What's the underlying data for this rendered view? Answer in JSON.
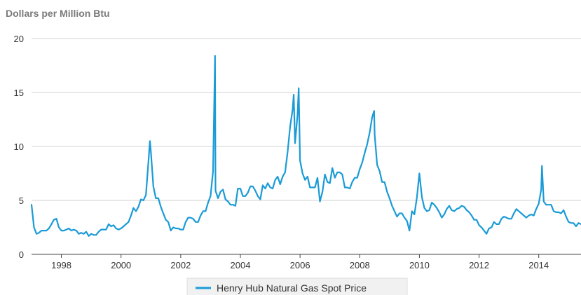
{
  "chart_data": {
    "type": "line",
    "title": "",
    "ylabel": "Dollars per Million Btu",
    "xlabel": "",
    "ylim": [
      0,
      20
    ],
    "xlim": [
      "1997-01",
      "2015-06"
    ],
    "y_ticks": [
      "0",
      "5",
      "10",
      "15",
      "20"
    ],
    "x_ticks": [
      "1998",
      "2000",
      "2002",
      "2004",
      "2006",
      "2008",
      "2010",
      "2012",
      "2014"
    ],
    "grid": "horizontal",
    "legend_position": "bottom-center",
    "series": [
      {
        "name": "Henry Hub Natural Gas Spot Price",
        "color": "#1a9bd7",
        "points": [
          [
            "1997-01",
            4.6
          ],
          [
            "1997-02",
            2.5
          ],
          [
            "1997-03",
            1.9
          ],
          [
            "1997-04",
            2.0
          ],
          [
            "1997-05",
            2.2
          ],
          [
            "1997-06",
            2.2
          ],
          [
            "1997-07",
            2.2
          ],
          [
            "1997-08",
            2.4
          ],
          [
            "1997-09",
            2.8
          ],
          [
            "1997-10",
            3.2
          ],
          [
            "1997-11",
            3.3
          ],
          [
            "1997-12",
            2.5
          ],
          [
            "1998-01",
            2.2
          ],
          [
            "1998-02",
            2.2
          ],
          [
            "1998-03",
            2.3
          ],
          [
            "1998-04",
            2.4
          ],
          [
            "1998-05",
            2.2
          ],
          [
            "1998-06",
            2.3
          ],
          [
            "1998-07",
            2.2
          ],
          [
            "1998-08",
            1.9
          ],
          [
            "1998-09",
            2.0
          ],
          [
            "1998-10",
            1.9
          ],
          [
            "1998-11",
            2.1
          ],
          [
            "1998-12",
            1.7
          ],
          [
            "1999-01",
            1.9
          ],
          [
            "1999-02",
            1.8
          ],
          [
            "1999-03",
            1.8
          ],
          [
            "1999-04",
            2.1
          ],
          [
            "1999-05",
            2.3
          ],
          [
            "1999-06",
            2.3
          ],
          [
            "1999-07",
            2.3
          ],
          [
            "1999-08",
            2.8
          ],
          [
            "1999-09",
            2.6
          ],
          [
            "1999-10",
            2.7
          ],
          [
            "1999-11",
            2.4
          ],
          [
            "1999-12",
            2.3
          ],
          [
            "2000-01",
            2.4
          ],
          [
            "2000-02",
            2.6
          ],
          [
            "2000-03",
            2.8
          ],
          [
            "2000-04",
            3.0
          ],
          [
            "2000-05",
            3.6
          ],
          [
            "2000-06",
            4.3
          ],
          [
            "2000-07",
            4.0
          ],
          [
            "2000-08",
            4.4
          ],
          [
            "2000-09",
            5.1
          ],
          [
            "2000-10",
            5.0
          ],
          [
            "2000-11",
            5.5
          ],
          [
            "2000-12",
            8.5
          ],
          [
            "2000-12-20",
            10.5
          ],
          [
            "2001-01",
            9.5
          ],
          [
            "2001-02",
            6.3
          ],
          [
            "2001-03",
            5.2
          ],
          [
            "2001-04",
            5.2
          ],
          [
            "2001-05",
            4.4
          ],
          [
            "2001-06",
            3.8
          ],
          [
            "2001-07",
            3.2
          ],
          [
            "2001-08",
            3.0
          ],
          [
            "2001-09",
            2.2
          ],
          [
            "2001-10",
            2.5
          ],
          [
            "2001-11",
            2.4
          ],
          [
            "2001-12",
            2.4
          ],
          [
            "2002-01",
            2.3
          ],
          [
            "2002-02",
            2.3
          ],
          [
            "2002-03",
            3.0
          ],
          [
            "2002-04",
            3.4
          ],
          [
            "2002-05",
            3.4
          ],
          [
            "2002-06",
            3.3
          ],
          [
            "2002-07",
            3.0
          ],
          [
            "2002-08",
            3.0
          ],
          [
            "2002-09",
            3.6
          ],
          [
            "2002-10",
            4.0
          ],
          [
            "2002-11",
            4.0
          ],
          [
            "2002-12",
            4.8
          ],
          [
            "2003-01",
            5.4
          ],
          [
            "2003-02",
            7.7
          ],
          [
            "2003-02-25",
            18.4
          ],
          [
            "2003-03",
            5.9
          ],
          [
            "2003-04",
            5.2
          ],
          [
            "2003-05",
            5.8
          ],
          [
            "2003-06",
            6.0
          ],
          [
            "2003-07",
            5.1
          ],
          [
            "2003-08",
            4.9
          ],
          [
            "2003-09",
            4.6
          ],
          [
            "2003-10",
            4.6
          ],
          [
            "2003-11",
            4.5
          ],
          [
            "2003-12",
            6.1
          ],
          [
            "2004-01",
            6.1
          ],
          [
            "2004-02",
            5.4
          ],
          [
            "2004-03",
            5.4
          ],
          [
            "2004-04",
            5.7
          ],
          [
            "2004-05",
            6.3
          ],
          [
            "2004-06",
            6.3
          ],
          [
            "2004-07",
            5.9
          ],
          [
            "2004-08",
            5.4
          ],
          [
            "2004-09",
            5.1
          ],
          [
            "2004-10",
            6.4
          ],
          [
            "2004-11",
            6.1
          ],
          [
            "2004-12",
            6.6
          ],
          [
            "2005-01",
            6.2
          ],
          [
            "2005-02",
            6.1
          ],
          [
            "2005-03",
            6.9
          ],
          [
            "2005-04",
            7.2
          ],
          [
            "2005-05",
            6.5
          ],
          [
            "2005-06",
            7.2
          ],
          [
            "2005-07",
            7.6
          ],
          [
            "2005-08",
            9.5
          ],
          [
            "2005-09",
            11.8
          ],
          [
            "2005-10",
            13.4
          ],
          [
            "2005-10-15",
            14.8
          ],
          [
            "2005-11",
            10.3
          ],
          [
            "2005-12",
            13.0
          ],
          [
            "2005-12-15",
            15.4
          ],
          [
            "2006-01",
            8.7
          ],
          [
            "2006-02",
            7.5
          ],
          [
            "2006-03",
            6.9
          ],
          [
            "2006-04",
            7.2
          ],
          [
            "2006-05",
            6.2
          ],
          [
            "2006-06",
            6.2
          ],
          [
            "2006-07",
            6.2
          ],
          [
            "2006-08",
            7.1
          ],
          [
            "2006-09",
            4.9
          ],
          [
            "2006-10",
            5.8
          ],
          [
            "2006-11",
            7.4
          ],
          [
            "2006-12",
            6.7
          ],
          [
            "2007-01",
            6.6
          ],
          [
            "2007-02",
            8.0
          ],
          [
            "2007-03",
            7.1
          ],
          [
            "2007-04",
            7.6
          ],
          [
            "2007-05",
            7.6
          ],
          [
            "2007-06",
            7.4
          ],
          [
            "2007-07",
            6.2
          ],
          [
            "2007-08",
            6.2
          ],
          [
            "2007-09",
            6.1
          ],
          [
            "2007-10",
            6.7
          ],
          [
            "2007-11",
            7.1
          ],
          [
            "2007-12",
            7.1
          ],
          [
            "2008-01",
            7.9
          ],
          [
            "2008-02",
            8.5
          ],
          [
            "2008-03",
            9.4
          ],
          [
            "2008-04",
            10.2
          ],
          [
            "2008-05",
            11.3
          ],
          [
            "2008-06",
            12.7
          ],
          [
            "2008-06-25",
            13.3
          ],
          [
            "2008-07",
            11.1
          ],
          [
            "2008-08",
            8.3
          ],
          [
            "2008-09",
            7.7
          ],
          [
            "2008-10",
            6.7
          ],
          [
            "2008-11",
            6.7
          ],
          [
            "2008-12",
            5.8
          ],
          [
            "2009-01",
            5.2
          ],
          [
            "2009-02",
            4.5
          ],
          [
            "2009-03",
            4.0
          ],
          [
            "2009-04",
            3.5
          ],
          [
            "2009-05",
            3.8
          ],
          [
            "2009-06",
            3.8
          ],
          [
            "2009-07",
            3.4
          ],
          [
            "2009-08",
            3.1
          ],
          [
            "2009-09",
            2.2
          ],
          [
            "2009-10",
            4.0
          ],
          [
            "2009-11",
            3.7
          ],
          [
            "2009-12",
            5.3
          ],
          [
            "2010-01",
            7.5
          ],
          [
            "2010-02",
            5.3
          ],
          [
            "2010-03",
            4.3
          ],
          [
            "2010-04",
            4.0
          ],
          [
            "2010-05",
            4.1
          ],
          [
            "2010-06",
            4.8
          ],
          [
            "2010-07",
            4.6
          ],
          [
            "2010-08",
            4.3
          ],
          [
            "2010-09",
            3.9
          ],
          [
            "2010-10",
            3.4
          ],
          [
            "2010-11",
            3.7
          ],
          [
            "2010-12",
            4.2
          ],
          [
            "2011-01",
            4.5
          ],
          [
            "2011-02",
            4.1
          ],
          [
            "2011-03",
            4.0
          ],
          [
            "2011-04",
            4.2
          ],
          [
            "2011-05",
            4.3
          ],
          [
            "2011-06",
            4.5
          ],
          [
            "2011-07",
            4.4
          ],
          [
            "2011-08",
            4.1
          ],
          [
            "2011-09",
            3.9
          ],
          [
            "2011-10",
            3.6
          ],
          [
            "2011-11",
            3.2
          ],
          [
            "2011-12",
            3.2
          ],
          [
            "2012-01",
            2.7
          ],
          [
            "2012-02",
            2.5
          ],
          [
            "2012-03",
            2.2
          ],
          [
            "2012-04",
            1.9
          ],
          [
            "2012-05",
            2.4
          ],
          [
            "2012-06",
            2.5
          ],
          [
            "2012-07",
            3.0
          ],
          [
            "2012-08",
            2.8
          ],
          [
            "2012-09",
            2.8
          ],
          [
            "2012-10",
            3.3
          ],
          [
            "2012-11",
            3.5
          ],
          [
            "2012-12",
            3.4
          ],
          [
            "2013-01",
            3.3
          ],
          [
            "2013-02",
            3.3
          ],
          [
            "2013-03",
            3.8
          ],
          [
            "2013-04",
            4.2
          ],
          [
            "2013-05",
            4.0
          ],
          [
            "2013-06",
            3.8
          ],
          [
            "2013-07",
            3.6
          ],
          [
            "2013-08",
            3.4
          ],
          [
            "2013-09",
            3.6
          ],
          [
            "2013-10",
            3.7
          ],
          [
            "2013-11",
            3.6
          ],
          [
            "2013-12",
            4.2
          ],
          [
            "2014-01",
            4.7
          ],
          [
            "2014-02",
            6.0
          ],
          [
            "2014-02-10",
            8.2
          ],
          [
            "2014-03",
            4.9
          ],
          [
            "2014-04",
            4.6
          ],
          [
            "2014-05",
            4.6
          ],
          [
            "2014-06",
            4.6
          ],
          [
            "2014-07",
            4.0
          ],
          [
            "2014-08",
            3.9
          ],
          [
            "2014-09",
            3.9
          ],
          [
            "2014-10",
            3.8
          ],
          [
            "2014-11",
            4.1
          ],
          [
            "2014-12",
            3.5
          ],
          [
            "2015-01",
            3.0
          ],
          [
            "2015-02",
            2.9
          ],
          [
            "2015-03",
            2.9
          ],
          [
            "2015-04",
            2.6
          ],
          [
            "2015-05",
            2.9
          ],
          [
            "2015-06",
            2.8
          ]
        ]
      }
    ]
  }
}
